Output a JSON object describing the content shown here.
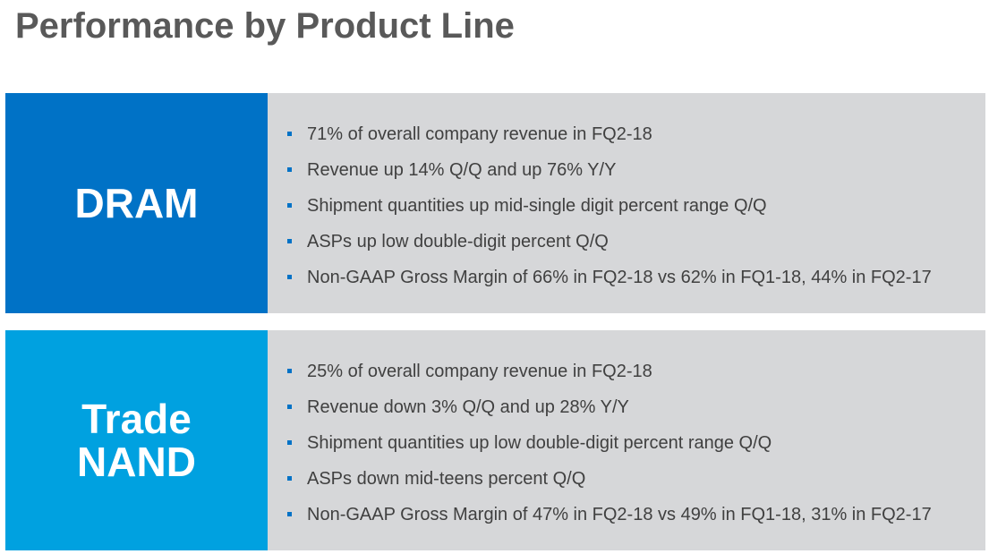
{
  "title": "Performance by Product Line",
  "sections": [
    {
      "label_lines": [
        "DRAM"
      ],
      "label_color": "#0072c6",
      "bullets": [
        "71% of overall company revenue in FQ2-18",
        "Revenue up 14% Q/Q and up 76% Y/Y",
        "Shipment quantities up mid-single digit percent range Q/Q",
        "ASPs up low double-digit percent Q/Q",
        "Non-GAAP Gross Margin of 66% in FQ2-18 vs 62% in FQ1-18, 44% in FQ2-17"
      ]
    },
    {
      "label_lines": [
        "Trade",
        "NAND"
      ],
      "label_color": "#00a1e0",
      "bullets": [
        "25% of overall company revenue in FQ2-18",
        "Revenue down 3% Q/Q and up 28% Y/Y",
        "Shipment quantities up low double-digit percent range Q/Q",
        "ASPs down mid-teens percent Q/Q",
        "Non-GAAP Gross Margin of 47% in FQ2-18 vs 49% in FQ1-18, 31% in FQ2-17"
      ]
    }
  ],
  "colors": {
    "title": "#595959",
    "content_background": "#d6d7d9",
    "bullet_marker": "#0072c6",
    "bullet_text": "#404040"
  }
}
